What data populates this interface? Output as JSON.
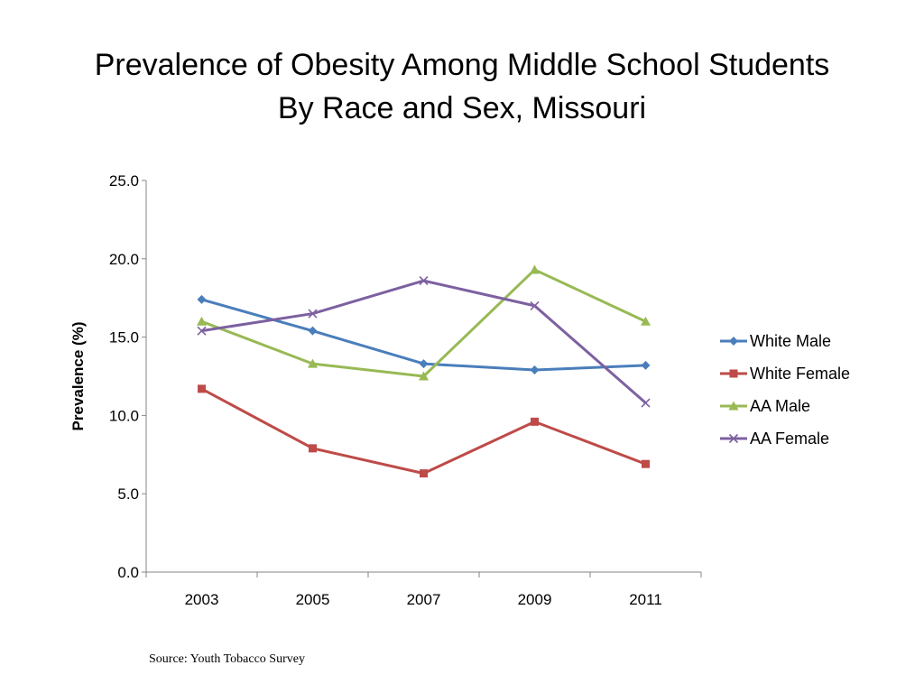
{
  "title": {
    "line1": "Prevalence of Obesity Among Middle School Students",
    "line2": "By Race and Sex, Missouri"
  },
  "source": "Source: Youth Tobacco Survey",
  "chart_data": {
    "type": "line",
    "title": "Prevalence of Obesity Among Middle School Students By Race and Sex, Missouri",
    "xlabel": "",
    "ylabel": "Prevalence (%)",
    "categories": [
      "2003",
      "2005",
      "2007",
      "2009",
      "2011"
    ],
    "ylim": [
      0,
      25
    ],
    "yticks": [
      "0.0",
      "5.0",
      "10.0",
      "15.0",
      "20.0",
      "25.0"
    ],
    "grid": false,
    "legend": "right",
    "series": [
      {
        "name": "White Male",
        "color": "#4a7ebb",
        "marker": "diamond",
        "values": [
          17.4,
          15.4,
          13.3,
          12.9,
          13.2
        ]
      },
      {
        "name": "White Female",
        "color": "#be4b48",
        "marker": "square",
        "values": [
          11.7,
          7.9,
          6.3,
          9.6,
          6.9
        ]
      },
      {
        "name": "AA Male",
        "color": "#98b954",
        "marker": "triangle",
        "values": [
          16.0,
          13.3,
          12.5,
          19.3,
          16.0
        ]
      },
      {
        "name": "AA Female",
        "color": "#7d60a0",
        "marker": "x",
        "values": [
          15.4,
          16.5,
          18.6,
          17.0,
          10.8
        ]
      }
    ]
  }
}
